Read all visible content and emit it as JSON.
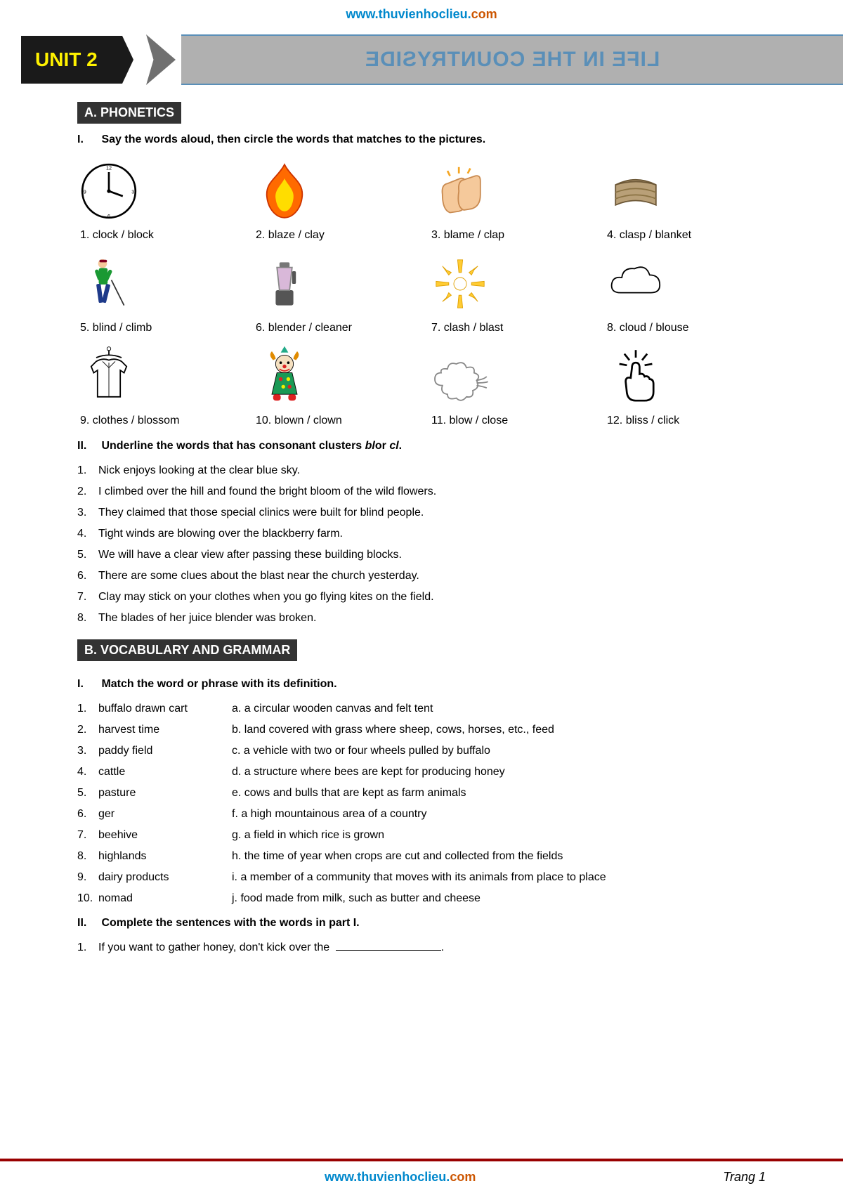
{
  "header_url": {
    "prefix": "www.thuvienhoclieu.",
    "suffix": "com"
  },
  "unit_badge": "UNIT 2",
  "title": "LIFE IN THE COUNTRYSIDE",
  "sectionA": {
    "header": "A. PHONETICS",
    "part1": {
      "roman": "I.",
      "instruction": "Say the words aloud, then circle the words that matches to the pictures.",
      "items": [
        {
          "n": "1.",
          "text": "clock / block",
          "icon": "clock"
        },
        {
          "n": "2.",
          "text": "blaze / clay",
          "icon": "flame"
        },
        {
          "n": "3.",
          "text": "blame / clap",
          "icon": "clap"
        },
        {
          "n": "4.",
          "text": "clasp / blanket",
          "icon": "blanket"
        },
        {
          "n": "5.",
          "text": "blind / climb",
          "icon": "blind"
        },
        {
          "n": "6.",
          "text": "blender /  cleaner",
          "icon": "blender"
        },
        {
          "n": "7.",
          "text": "clash / blast",
          "icon": "blast"
        },
        {
          "n": "8.",
          "text": "cloud / blouse",
          "icon": "cloud"
        },
        {
          "n": "9.",
          "text": "clothes / blossom",
          "icon": "clothes"
        },
        {
          "n": "10.",
          "text": "blown / clown",
          "icon": "clown"
        },
        {
          "n": "11.",
          "text": "blow / close",
          "icon": "blow"
        },
        {
          "n": "12.",
          "text": "bliss / click",
          "icon": "click"
        }
      ]
    },
    "part2": {
      "roman": "II.",
      "instruction_pre": "Underline the words that has consonant clusters ",
      "instruction_em": "bl",
      "instruction_mid": "or ",
      "instruction_em2": "cl",
      "instruction_post": ".",
      "sentences": [
        {
          "n": "1.",
          "text": "Nick enjoys looking at the clear blue sky."
        },
        {
          "n": "2.",
          "text": "I climbed over the hill and found the bright bloom of the wild flowers."
        },
        {
          "n": "3.",
          "text": "They claimed that those special clinics were built for blind people."
        },
        {
          "n": "4.",
          "text": "Tight winds are blowing over the blackberry farm."
        },
        {
          "n": "5.",
          "text": "We will have a clear view after passing these building blocks."
        },
        {
          "n": "6.",
          "text": "There are some clues about the blast near the church yesterday."
        },
        {
          "n": "7.",
          "text": "Clay may stick on your clothes when you go flying kites on the field."
        },
        {
          "n": "8.",
          "text": "The blades of her juice blender was broken."
        }
      ]
    }
  },
  "sectionB": {
    "header": "B.  VOCABULARY AND GRAMMAR",
    "part1": {
      "roman": "I.",
      "instruction": "Match the word or phrase with its definition.",
      "rows": [
        {
          "n": "1.",
          "term": "buffalo drawn cart",
          "def": "a. a circular wooden canvas and felt tent"
        },
        {
          "n": "2.",
          "term": "harvest time",
          "def": "b. land covered with grass where sheep, cows, horses, etc., feed"
        },
        {
          "n": "3.",
          "term": "paddy field",
          "def": "c. a vehicle with two or four wheels pulled by buffalo"
        },
        {
          "n": "4.",
          "term": "cattle",
          "def": "d. a structure where bees are kept for producing honey"
        },
        {
          "n": "5.",
          "term": "pasture",
          "def": "e. cows and bulls that are kept as farm animals"
        },
        {
          "n": "6.",
          "term": "ger",
          "def": "f. a high mountainous area of a country"
        },
        {
          "n": "7.",
          "term": "beehive",
          "def": "g. a field in which rice is grown"
        },
        {
          "n": "8.",
          "term": "highlands",
          "def": "h. the time of year when crops are cut and collected from the fields"
        },
        {
          "n": "9.",
          "term": "dairy products",
          "def": "i. a member of a community that moves with its animals from place to place"
        },
        {
          "n": "10.",
          "term": "nomad",
          "def": "j. food made from milk, such as butter and cheese"
        }
      ]
    },
    "part2": {
      "roman": "II.",
      "instruction": "Complete the sentences with the words in part I.",
      "sentences": [
        {
          "n": "1.",
          "text": "If you want to gather honey, don't kick over the "
        }
      ]
    }
  },
  "footer": {
    "url_prefix": "www.thuvienhoclieu.",
    "url_suffix": "com",
    "page": "Trang 1"
  }
}
